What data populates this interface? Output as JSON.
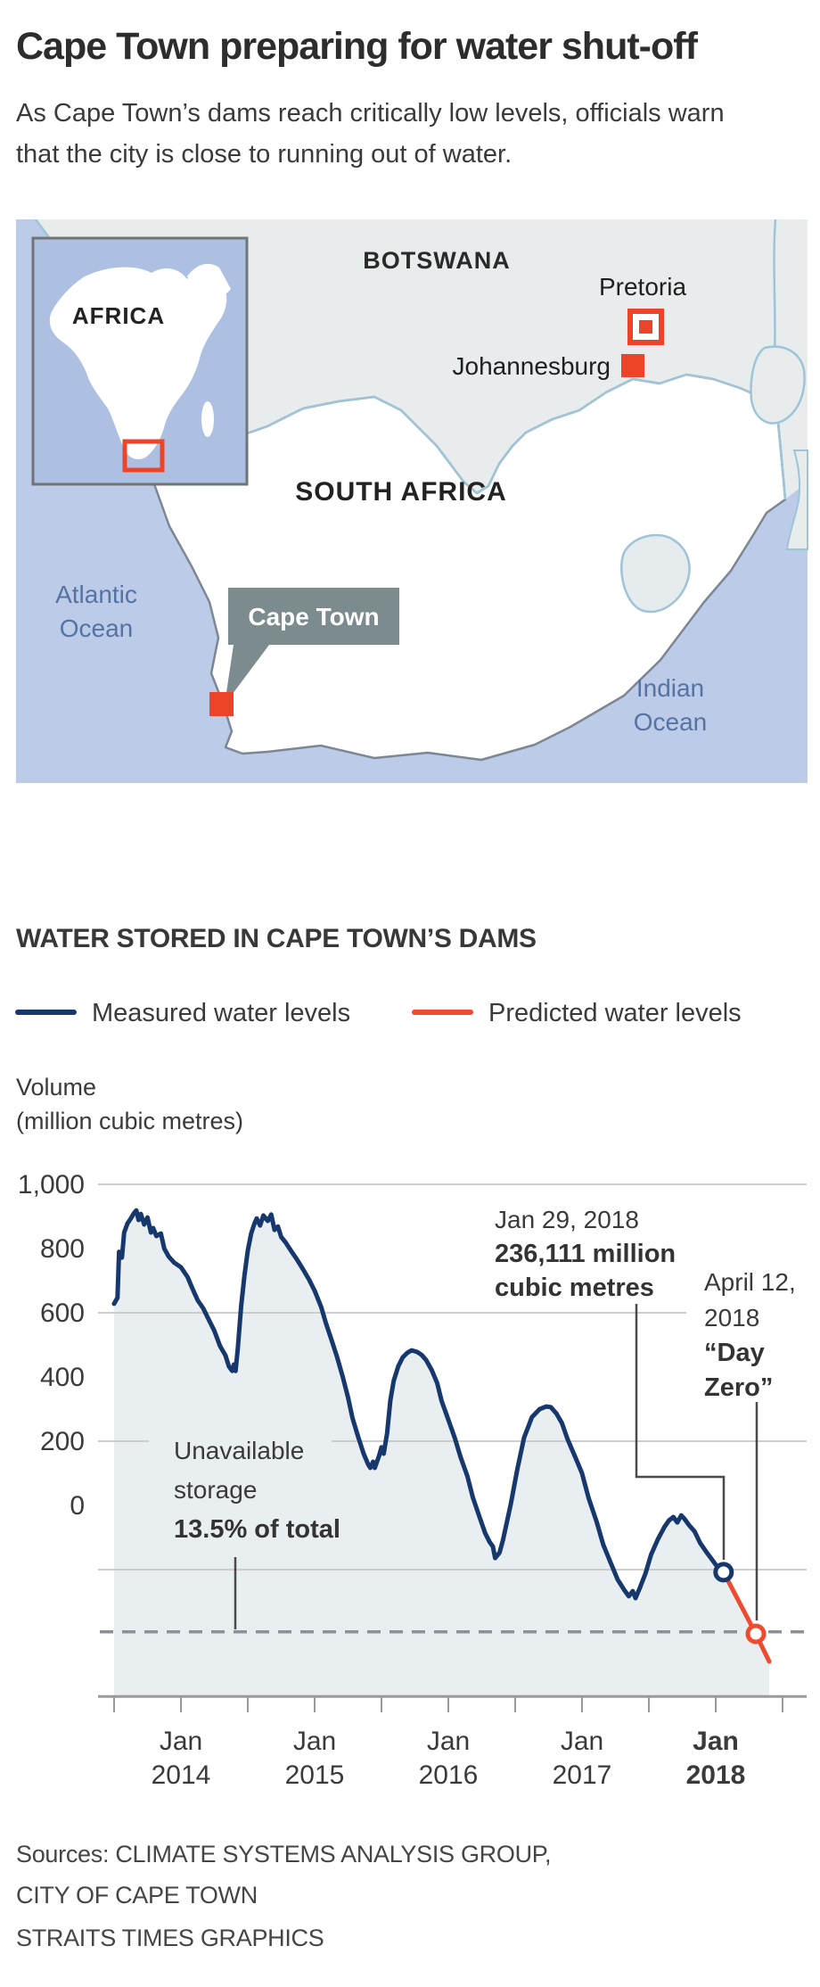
{
  "header": {
    "title": "Cape Town preparing for water shut-off",
    "subtitle_line1": "As Cape Town’s dams reach critically low levels, officials warn",
    "subtitle_line2": "that the city is close to running out of water."
  },
  "map": {
    "inset_label": "AFRICA",
    "labels": {
      "botswana": "BOTSWANA",
      "south_africa": "SOUTH AFRICA",
      "pretoria": "Pretoria",
      "johannesburg": "Johannesburg",
      "cape_town": "Cape Town",
      "atlantic_line1": "Atlantic",
      "atlantic_line2": "Ocean",
      "indian_line1": "Indian",
      "indian_line2": "Ocean"
    },
    "colors": {
      "ocean": "#bccbe7",
      "inset_ocean": "#aec0e2",
      "land_gray": "#e8eced",
      "south_africa_fill": "#ffffff",
      "border_blue": "#9ec4d8",
      "coast_gray": "#7c8793",
      "accent_red": "#ed4429",
      "capetown_box": "#7c8b8d"
    }
  },
  "chart_data": {
    "type": "line",
    "title": "WATER STORED IN CAPE TOWN’S DAMS",
    "ylabel_line1": "Volume",
    "ylabel_line2": "(million cubic metres)",
    "legend": [
      {
        "label": "Measured water levels",
        "color": "#16386d"
      },
      {
        "label": "Predicted water levels",
        "color": "#ee4b30"
      }
    ],
    "y_ticks": [
      1000,
      800,
      600,
      400,
      200,
      0
    ],
    "y_tick_labels": [
      "1,000",
      "800",
      "600",
      "400",
      "200",
      "0"
    ],
    "gridline_values": [
      1000,
      600,
      200,
      -200
    ],
    "dashed_line_value": -394,
    "baseline_value": -595,
    "x_tick_months": [
      0,
      6,
      12,
      18,
      24,
      30,
      36,
      42,
      48,
      54,
      60
    ],
    "x_label_months": [
      6,
      18,
      30,
      42,
      54
    ],
    "x_categories": [
      {
        "line1": "Jan",
        "line2": "2014",
        "bold": false
      },
      {
        "line1": "Jan",
        "line2": "2015",
        "bold": false
      },
      {
        "line1": "Jan",
        "line2": "2016",
        "bold": false
      },
      {
        "line1": "Jan",
        "line2": "2017",
        "bold": false
      },
      {
        "line1": "Jan",
        "line2": "2018",
        "bold": true
      }
    ],
    "x_axis_note": "months measured from mid-2013; Jan ticks every 12 months",
    "series": [
      {
        "name": "Measured water levels",
        "color": "#16386d",
        "points": [
          [
            0,
            628
          ],
          [
            0.3,
            647
          ],
          [
            0.45,
            790
          ],
          [
            0.7,
            772
          ],
          [
            0.9,
            850
          ],
          [
            1.2,
            878
          ],
          [
            1.5,
            894
          ],
          [
            1.8,
            911
          ],
          [
            2,
            919
          ],
          [
            2.2,
            889
          ],
          [
            2.4,
            908
          ],
          [
            2.7,
            875
          ],
          [
            3,
            897
          ],
          [
            3.3,
            850
          ],
          [
            3.5,
            864
          ],
          [
            3.8,
            839
          ],
          [
            4.2,
            847
          ],
          [
            4.5,
            800
          ],
          [
            4.9,
            775
          ],
          [
            5.4,
            756
          ],
          [
            6,
            742
          ],
          [
            6.6,
            711
          ],
          [
            7,
            678
          ],
          [
            7.5,
            639
          ],
          [
            8,
            614
          ],
          [
            8.5,
            578
          ],
          [
            9,
            544
          ],
          [
            9.5,
            497
          ],
          [
            10,
            467
          ],
          [
            10.3,
            433
          ],
          [
            10.6,
            419
          ],
          [
            10.75,
            439
          ],
          [
            10.9,
            419
          ],
          [
            11.1,
            489
          ],
          [
            11.4,
            619
          ],
          [
            11.7,
            717
          ],
          [
            12,
            794
          ],
          [
            12.3,
            847
          ],
          [
            12.6,
            878
          ],
          [
            12.8,
            894
          ],
          [
            13.1,
            872
          ],
          [
            13.4,
            903
          ],
          [
            13.8,
            886
          ],
          [
            14.1,
            906
          ],
          [
            14.4,
            858
          ],
          [
            14.7,
            869
          ],
          [
            15,
            836
          ],
          [
            15.4,
            819
          ],
          [
            15.9,
            792
          ],
          [
            16.4,
            767
          ],
          [
            17,
            733
          ],
          [
            17.5,
            703
          ],
          [
            18,
            669
          ],
          [
            18.6,
            617
          ],
          [
            19,
            569
          ],
          [
            19.5,
            517
          ],
          [
            20,
            464
          ],
          [
            20.5,
            403
          ],
          [
            21,
            336
          ],
          [
            21.4,
            272
          ],
          [
            21.9,
            214
          ],
          [
            22.4,
            161
          ],
          [
            22.8,
            128
          ],
          [
            23,
            117
          ],
          [
            23.25,
            136
          ],
          [
            23.4,
            117
          ],
          [
            23.8,
            156
          ],
          [
            24,
            181
          ],
          [
            24.2,
            161
          ],
          [
            24.5,
            225
          ],
          [
            24.8,
            328
          ],
          [
            25.1,
            389
          ],
          [
            25.5,
            433
          ],
          [
            25.9,
            461
          ],
          [
            26.3,
            475
          ],
          [
            26.7,
            483
          ],
          [
            27.2,
            478
          ],
          [
            27.6,
            469
          ],
          [
            28,
            453
          ],
          [
            28.5,
            422
          ],
          [
            29,
            381
          ],
          [
            29.4,
            325
          ],
          [
            30,
            267
          ],
          [
            30.6,
            208
          ],
          [
            31.1,
            150
          ],
          [
            31.7,
            92
          ],
          [
            32.2,
            25
          ],
          [
            32.8,
            -36
          ],
          [
            33.3,
            -86
          ],
          [
            33.7,
            -114
          ],
          [
            34,
            -128
          ],
          [
            34.2,
            -164
          ],
          [
            34.6,
            -147
          ],
          [
            34.9,
            -108
          ],
          [
            35.6,
            3
          ],
          [
            36.2,
            114
          ],
          [
            36.8,
            211
          ],
          [
            37.5,
            275
          ],
          [
            38.2,
            300
          ],
          [
            38.8,
            308
          ],
          [
            39.2,
            306
          ],
          [
            39.7,
            286
          ],
          [
            40.2,
            256
          ],
          [
            40.7,
            206
          ],
          [
            41.4,
            150
          ],
          [
            42,
            100
          ],
          [
            42.6,
            22
          ],
          [
            43.3,
            -50
          ],
          [
            43.9,
            -122
          ],
          [
            44.6,
            -181
          ],
          [
            45.2,
            -231
          ],
          [
            45.8,
            -264
          ],
          [
            46.2,
            -283
          ],
          [
            46.55,
            -267
          ],
          [
            46.8,
            -289
          ],
          [
            47.2,
            -256
          ],
          [
            47.7,
            -211
          ],
          [
            48.2,
            -153
          ],
          [
            48.8,
            -106
          ],
          [
            49.4,
            -67
          ],
          [
            49.8,
            -47
          ],
          [
            50.2,
            -36
          ],
          [
            50.55,
            -53
          ],
          [
            50.9,
            -31
          ],
          [
            51.2,
            -42
          ],
          [
            51.6,
            -61
          ],
          [
            52.1,
            -81
          ],
          [
            52.6,
            -117
          ],
          [
            53.2,
            -147
          ],
          [
            53.8,
            -175
          ],
          [
            54.2,
            -194
          ],
          [
            54.7,
            -208
          ]
        ]
      },
      {
        "name": "Predicted water levels",
        "color": "#ee4b30",
        "points": [
          [
            54.7,
            -208
          ],
          [
            57.6,
            -400
          ],
          [
            58.8,
            -486
          ]
        ]
      }
    ],
    "annotations": {
      "measured_end": {
        "line1": "Jan 29, 2018",
        "line2": "236,111 million",
        "line3": "cubic metres",
        "point": [
          54.7,
          -208
        ]
      },
      "day_zero": {
        "line1": "April 12,",
        "line2": "2018",
        "line3": "“Day",
        "line4": "Zero”",
        "point": [
          57.6,
          -400
        ]
      },
      "unavailable": {
        "line1": "Unavailable",
        "line2": "storage",
        "line3": "13.5% of total"
      }
    }
  },
  "sources": {
    "line1": "Sources: CLIMATE SYSTEMS ANALYSIS GROUP,",
    "line2": "CITY OF CAPE TOWN",
    "line3": "STRAITS TIMES GRAPHICS"
  }
}
